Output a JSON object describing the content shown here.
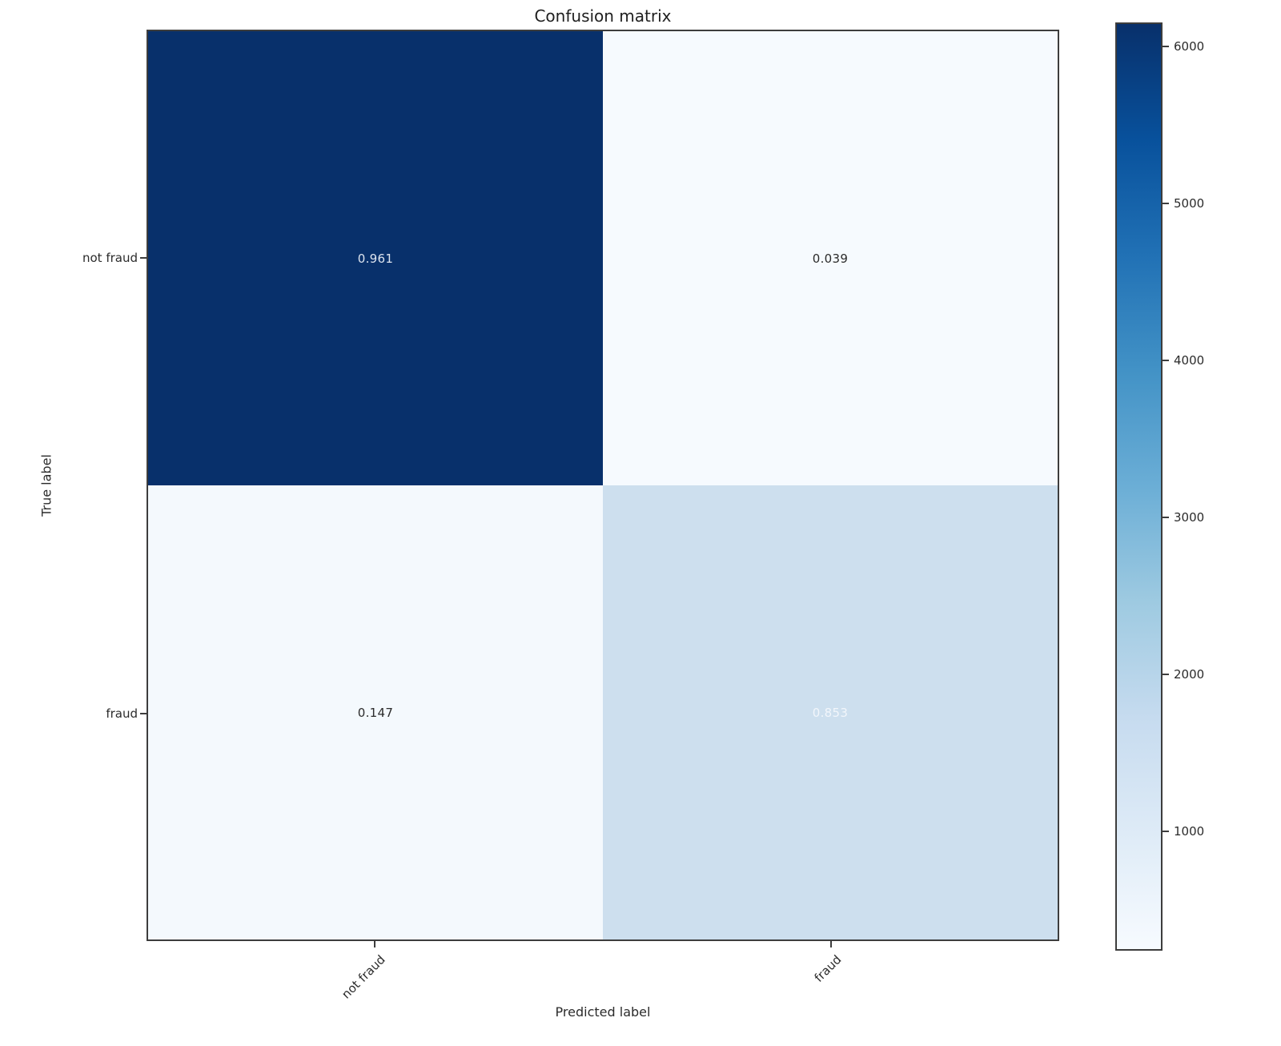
{
  "chart_data": {
    "type": "heatmap",
    "title": "Confusion matrix",
    "xlabel": "Predicted label",
    "ylabel": "True label",
    "x_categories": [
      "not fraud",
      "fraud"
    ],
    "y_categories": [
      "not fraud",
      "fraud"
    ],
    "matrix": [
      [
        0.961,
        0.039
      ],
      [
        0.147,
        0.853
      ]
    ],
    "cells": [
      {
        "row": "not fraud",
        "col": "not fraud",
        "value": "0.961",
        "bg": "#08306b",
        "text_color": "#dde4ef"
      },
      {
        "row": "not fraud",
        "col": "fraud",
        "value": "0.039",
        "bg": "#f6fafe",
        "text_color": "#2b2b2b"
      },
      {
        "row": "fraud",
        "col": "not fraud",
        "value": "0.147",
        "bg": "#f4f9fd",
        "text_color": "#2b2b2b"
      },
      {
        "row": "fraud",
        "col": "fraud",
        "value": "0.853",
        "bg": "#cddfee",
        "text_color": "#f2f6fb"
      }
    ],
    "colorbar": {
      "colormap": "Blues",
      "ticks": [
        "6000",
        "5000",
        "4000",
        "3000",
        "2000",
        "1000"
      ],
      "gradient_stops_bottom_to_top": [
        "#f7fbff",
        "#deebf7",
        "#c6dbef",
        "#9ecae1",
        "#6baed6",
        "#4292c6",
        "#2171b5",
        "#08519c",
        "#08306b"
      ]
    },
    "layout_hints": {
      "grid": "off",
      "legend": "colorbar-right",
      "x_tick_rotation_deg": 45
    }
  },
  "colors": {
    "background": "#ffffff",
    "spine": "#3d3d3d",
    "text": "#2b2b2b",
    "heat_high": "#08306b",
    "heat_low": "#f7fbff"
  }
}
